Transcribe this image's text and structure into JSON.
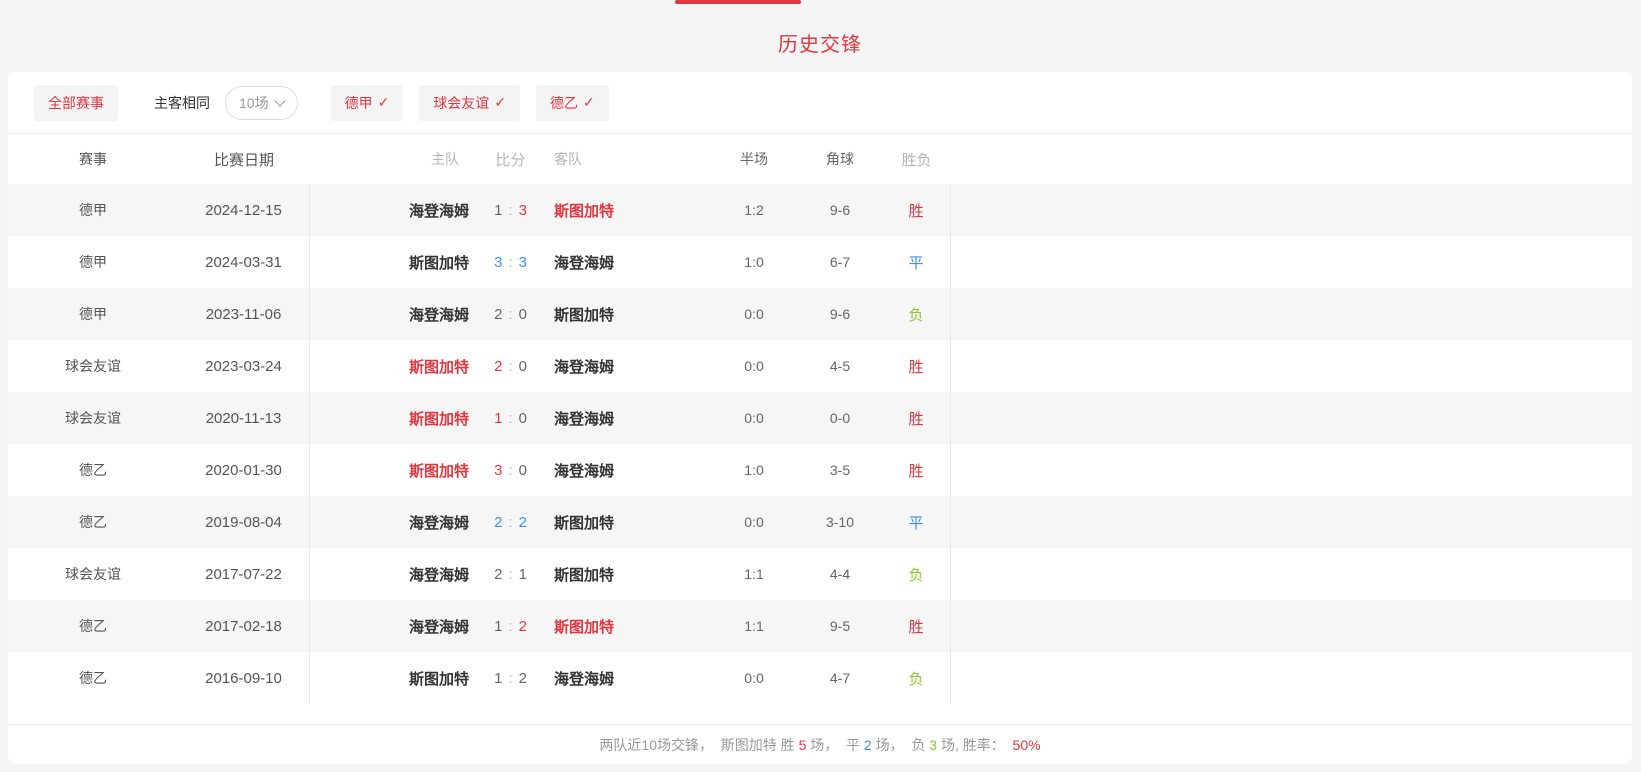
{
  "page": {
    "title": "历史交锋",
    "colors": {
      "accent_red": "#e0383f",
      "draw_blue": "#3e8df3",
      "loss_green": "#8bc832",
      "row_alt_bg": "#f6f6f6",
      "page_bg": "#f5f5f5"
    }
  },
  "filters": {
    "all_label": "全部赛事",
    "home_away_label": "主客相同",
    "count_select": {
      "value": "10场"
    },
    "league_toggles": [
      {
        "label": "德甲",
        "checked": true
      },
      {
        "label": "球会友谊",
        "checked": true
      },
      {
        "label": "德乙",
        "checked": true
      }
    ],
    "check_glyph": "✓"
  },
  "table": {
    "headers": [
      "赛事",
      "比赛日期",
      "主队",
      "比分",
      "客队",
      "半场",
      "角球",
      "胜负"
    ],
    "rows": [
      {
        "comp": "德甲",
        "date": "2024-12-15",
        "home": "海登海姆",
        "home_red": false,
        "hs": "1",
        "hs_color": "default",
        "as": "3",
        "as_color": "red",
        "away": "斯图加特",
        "away_red": true,
        "half": "1:2",
        "corner": "9-6",
        "result": "胜",
        "result_color": "red"
      },
      {
        "comp": "德甲",
        "date": "2024-03-31",
        "home": "斯图加特",
        "home_red": false,
        "hs": "3",
        "hs_color": "blue",
        "as": "3",
        "as_color": "blue",
        "away": "海登海姆",
        "away_red": false,
        "half": "1:0",
        "corner": "6-7",
        "result": "平",
        "result_color": "blue"
      },
      {
        "comp": "德甲",
        "date": "2023-11-06",
        "home": "海登海姆",
        "home_red": false,
        "hs": "2",
        "hs_color": "default",
        "as": "0",
        "as_color": "default",
        "away": "斯图加特",
        "away_red": false,
        "half": "0:0",
        "corner": "9-6",
        "result": "负",
        "result_color": "green"
      },
      {
        "comp": "球会友谊",
        "date": "2023-03-24",
        "home": "斯图加特",
        "home_red": true,
        "hs": "2",
        "hs_color": "red",
        "as": "0",
        "as_color": "default",
        "away": "海登海姆",
        "away_red": false,
        "half": "0:0",
        "corner": "4-5",
        "result": "胜",
        "result_color": "red"
      },
      {
        "comp": "球会友谊",
        "date": "2020-11-13",
        "home": "斯图加特",
        "home_red": true,
        "hs": "1",
        "hs_color": "red",
        "as": "0",
        "as_color": "default",
        "away": "海登海姆",
        "away_red": false,
        "half": "0:0",
        "corner": "0-0",
        "result": "胜",
        "result_color": "red"
      },
      {
        "comp": "德乙",
        "date": "2020-01-30",
        "home": "斯图加特",
        "home_red": true,
        "hs": "3",
        "hs_color": "red",
        "as": "0",
        "as_color": "default",
        "away": "海登海姆",
        "away_red": false,
        "half": "1:0",
        "corner": "3-5",
        "result": "胜",
        "result_color": "red"
      },
      {
        "comp": "德乙",
        "date": "2019-08-04",
        "home": "海登海姆",
        "home_red": false,
        "hs": "2",
        "hs_color": "blue",
        "as": "2",
        "as_color": "blue",
        "away": "斯图加特",
        "away_red": false,
        "half": "0:0",
        "corner": "3-10",
        "result": "平",
        "result_color": "blue"
      },
      {
        "comp": "球会友谊",
        "date": "2017-07-22",
        "home": "海登海姆",
        "home_red": false,
        "hs": "2",
        "hs_color": "default",
        "as": "1",
        "as_color": "default",
        "away": "斯图加特",
        "away_red": false,
        "half": "1:1",
        "corner": "4-4",
        "result": "负",
        "result_color": "green"
      },
      {
        "comp": "德乙",
        "date": "2017-02-18",
        "home": "海登海姆",
        "home_red": false,
        "hs": "1",
        "hs_color": "default",
        "as": "2",
        "as_color": "red",
        "away": "斯图加特",
        "away_red": true,
        "half": "1:1",
        "corner": "9-5",
        "result": "胜",
        "result_color": "red"
      },
      {
        "comp": "德乙",
        "date": "2016-09-10",
        "home": "斯图加特",
        "home_red": false,
        "hs": "1",
        "hs_color": "default",
        "as": "2",
        "as_color": "default",
        "away": "海登海姆",
        "away_red": false,
        "half": "0:0",
        "corner": "4-7",
        "result": "负",
        "result_color": "green"
      }
    ],
    "score_colon": ":"
  },
  "summary": {
    "segments": [
      {
        "name": "summary-prefix",
        "text": "两队近10场交锋，  ",
        "color": "gray"
      },
      {
        "name": "summary-team",
        "text": "斯图加特",
        "color": "gray"
      },
      {
        "name": "summary-win-label",
        "text": " 胜 ",
        "color": "gray"
      },
      {
        "name": "summary-win-count",
        "text": "5",
        "color": "red"
      },
      {
        "name": "summary-sep1",
        "text": " 场，  ",
        "color": "gray"
      },
      {
        "name": "summary-draw-label",
        "text": "平 ",
        "color": "gray"
      },
      {
        "name": "summary-draw-count",
        "text": "2",
        "color": "blue"
      },
      {
        "name": "summary-sep2",
        "text": " 场，  ",
        "color": "gray"
      },
      {
        "name": "summary-loss-label",
        "text": "负 ",
        "color": "gray"
      },
      {
        "name": "summary-loss-count",
        "text": "3",
        "color": "green"
      },
      {
        "name": "summary-sep3",
        "text": " 场, 胜率：  ",
        "color": "gray"
      },
      {
        "name": "summary-win-rate",
        "text": "50%",
        "color": "red"
      }
    ]
  }
}
